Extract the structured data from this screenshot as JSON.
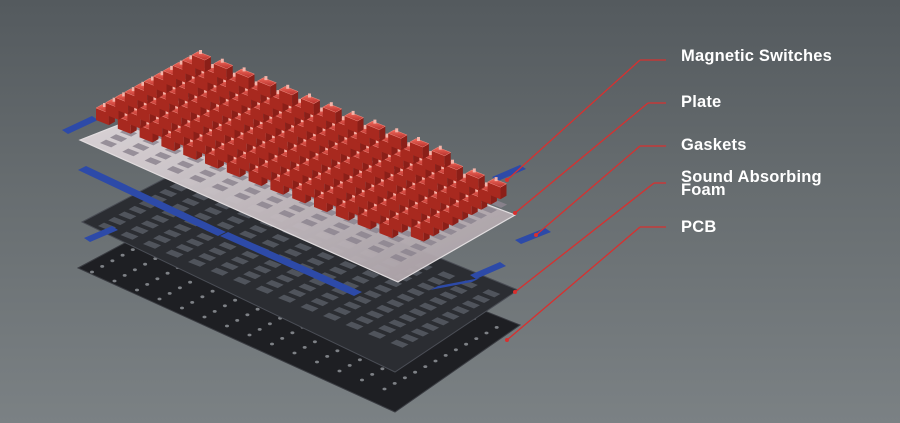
{
  "diagram": {
    "labels": {
      "switches": "Magnetic Switches",
      "plate": "Plate",
      "gaskets": "Gaskets",
      "foam_line1": "Sound Absorbing",
      "foam_line2": "Foam",
      "pcb": "PCB"
    }
  },
  "colors": {
    "background_top": "#545a5e",
    "background_bottom": "#7b8184",
    "leader_line": "#d8302f",
    "switch_red": "#d9453f",
    "gasket_blue": "#2d4aa8",
    "plate_silver": "#c8c2c6",
    "foam_dark": "#2b2d32",
    "pcb_black": "#1e1f23"
  }
}
